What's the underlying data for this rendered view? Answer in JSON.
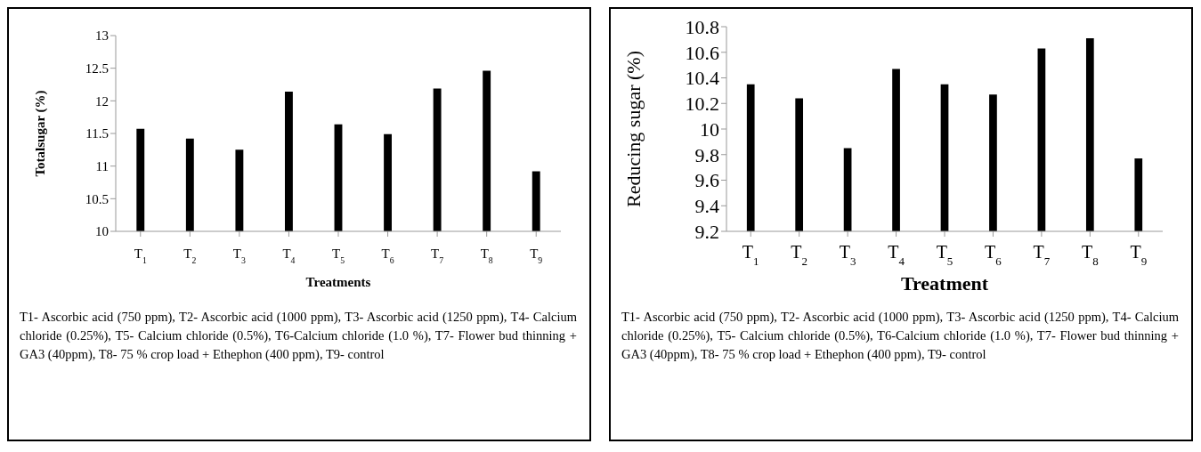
{
  "chart_data": [
    {
      "type": "bar",
      "xlabel": "Treatments",
      "ylabel": "Totalsugar (%)",
      "categories": [
        "T$_{1}$",
        "T$_{2}$",
        "T$_{3}$",
        "T$_{4}$",
        "T$_{5}$",
        "T$_{6}$",
        "T$_{7}$",
        "T$_{8}$",
        "T$_{9}$"
      ],
      "values": [
        11.57,
        11.42,
        11.25,
        12.14,
        11.64,
        11.49,
        12.19,
        12.46,
        10.92
      ],
      "color": "#000000",
      "ylim": [
        10,
        13
      ],
      "yticks": [
        10,
        10.5,
        11,
        11.5,
        12,
        12.5,
        13
      ],
      "grid": false,
      "legend": false,
      "annotations": [
        "T1- Ascorbic acid (750 ppm), T2- Ascorbic acid (1000 ppm), T3- Ascorbic acid (1250 ppm), T4- Calcium chloride (0.25%), T5- Calcium chloride (0.5%), T6-Calcium chloride (1.0 %), T7- Flower bud thinning + GA3 (40ppm), T8- 75 % crop load + Ethephon (400 ppm), T9- control"
      ]
    },
    {
      "type": "bar",
      "xlabel": "Treatment",
      "ylabel": "Reducing sugar (%)",
      "categories": [
        "T$_{1}$",
        "T$_{2}$",
        "T$_{3}$",
        "T$_{4}$",
        "T$_{5}$",
        "T$_{6}$",
        "T$_{7}$",
        "T$_{8}$",
        "T$_{9}$"
      ],
      "values": [
        10.35,
        10.24,
        9.85,
        10.47,
        10.35,
        10.27,
        10.63,
        10.71,
        9.77
      ],
      "color": "#000000",
      "ylim": [
        9.2,
        10.8
      ],
      "yticks": [
        9.2,
        9.4,
        9.6,
        9.8,
        10,
        10.2,
        10.4,
        10.6,
        10.8
      ],
      "grid": false,
      "legend": false,
      "annotations": [
        "T1- Ascorbic acid (750 ppm), T2- Ascorbic acid (1000 ppm), T3- Ascorbic acid (1250 ppm), T4- Calcium chloride (0.25%), T5- Calcium chloride (0.5%), T6-Calcium chloride (1.0 %), T7- Flower bud thinning + GA3 (40ppm), T8- 75 % crop load + Ethephon (400 ppm), T9- control"
      ]
    }
  ]
}
